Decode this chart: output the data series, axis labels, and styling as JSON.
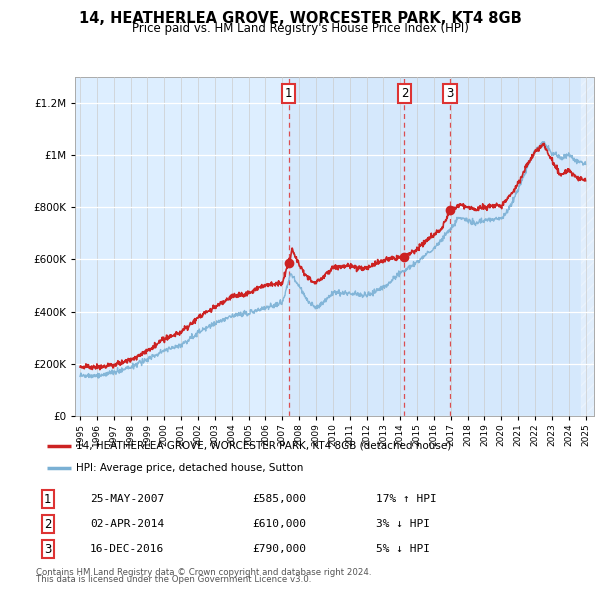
{
  "title": "14, HEATHERLEA GROVE, WORCESTER PARK, KT4 8GB",
  "subtitle": "Price paid vs. HM Land Registry's House Price Index (HPI)",
  "legend_line1": "14, HEATHERLEA GROVE, WORCESTER PARK, KT4 8GB (detached house)",
  "legend_line2": "HPI: Average price, detached house, Sutton",
  "footer1": "Contains HM Land Registry data © Crown copyright and database right 2024.",
  "footer2": "This data is licensed under the Open Government Licence v3.0.",
  "sales": [
    {
      "num": 1,
      "date": "25-MAY-2007",
      "price": 585000,
      "pct": "17%",
      "dir": "↑",
      "year": 2007.38
    },
    {
      "num": 2,
      "date": "02-APR-2014",
      "price": 610000,
      "pct": "3%",
      "dir": "↓",
      "year": 2014.25
    },
    {
      "num": 3,
      "date": "16-DEC-2016",
      "price": 790000,
      "pct": "5%",
      "dir": "↓",
      "year": 2016.96
    }
  ],
  "hpi_color": "#7ab0d4",
  "price_color": "#cc2222",
  "vline_color": "#dd3333",
  "background_color": "#ddeeff",
  "highlight_color": "#c8dcf0",
  "ylim": [
    0,
    1300000
  ],
  "xlim_start": 1994.7,
  "xlim_end": 2025.5
}
